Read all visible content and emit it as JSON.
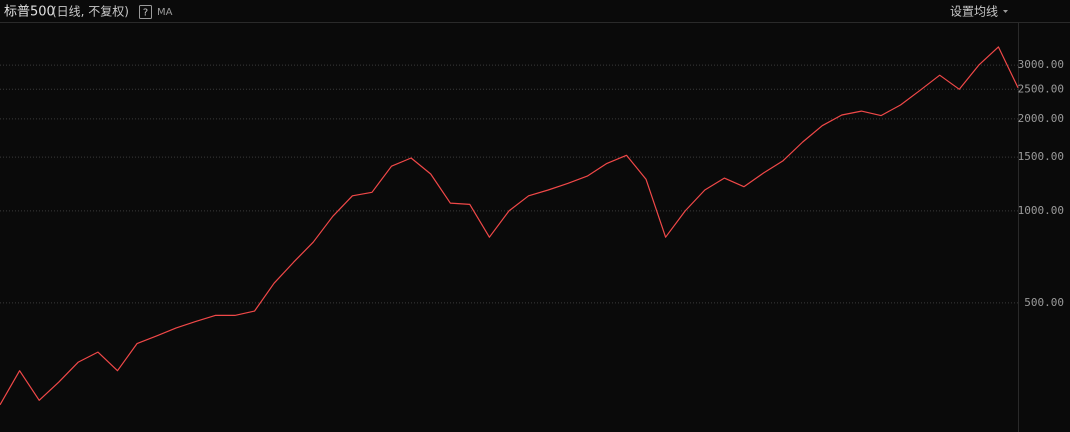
{
  "chart_data": {
    "type": "line",
    "title": "标普500",
    "subtitle": "(日线, 不复权)",
    "help_icon": "?",
    "indicator": "MA",
    "settings_button": "设置均线",
    "log_scale": true,
    "grid": true,
    "color": "#f04848",
    "ylim": [
      189,
      4150
    ],
    "yticks": [
      {
        "value": 500,
        "label": "500.00"
      },
      {
        "value": 1000,
        "label": "1000.00"
      },
      {
        "value": 1500,
        "label": "1500.00"
      },
      {
        "value": 2000,
        "label": "2000.00"
      },
      {
        "value": 2500,
        "label": "2500.00"
      },
      {
        "value": 3000,
        "label": "3000.00"
      }
    ],
    "values": [
      232,
      300,
      240,
      275,
      320,
      345,
      300,
      368,
      390,
      414,
      435,
      455,
      455,
      470,
      580,
      680,
      790,
      960,
      1120,
      1150,
      1400,
      1490,
      1320,
      1060,
      1050,
      820,
      1000,
      1120,
      1170,
      1230,
      1300,
      1430,
      1520,
      1270,
      820,
      1000,
      1170,
      1280,
      1200,
      1330,
      1460,
      1680,
      1900,
      2060,
      2120,
      2050,
      2220,
      2480,
      2780,
      2500,
      3000,
      3440,
      2530
    ]
  }
}
